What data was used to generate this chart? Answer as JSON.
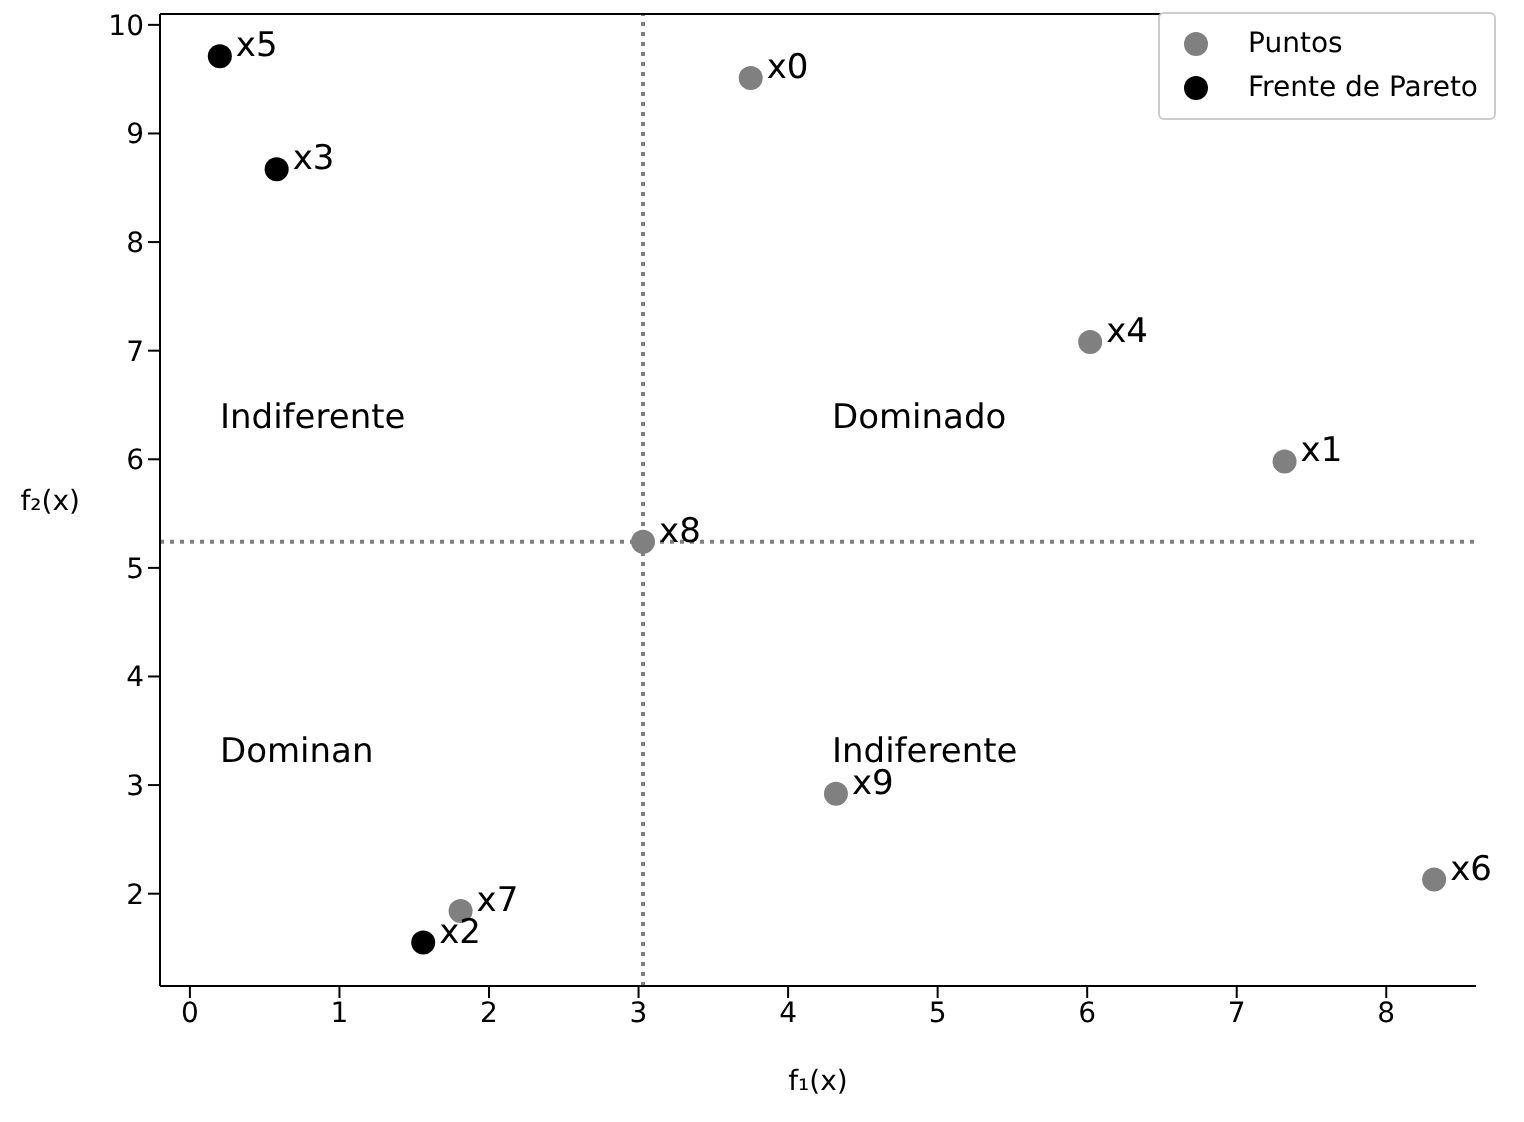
{
  "chart_data": {
    "type": "scatter",
    "xlabel": "f₁(x)",
    "ylabel": "f₂(x)",
    "xlim": [
      -0.2,
      8.6
    ],
    "ylim": [
      1.15,
      10.1
    ],
    "xticks": [
      0,
      1,
      2,
      3,
      4,
      5,
      6,
      7,
      8
    ],
    "yticks": [
      2,
      3,
      4,
      5,
      6,
      7,
      8,
      9,
      10
    ],
    "grid": false,
    "legend": "top right",
    "marker": "circle",
    "series": [
      {
        "name": "Puntos",
        "color": "#808080",
        "x": [
          3.75,
          7.32,
          6.02,
          8.32,
          1.81,
          3.03,
          4.32
        ],
        "values": [
          9.51,
          5.98,
          7.08,
          2.13,
          1.84,
          5.24,
          2.92
        ]
      },
      {
        "name": "Frente de Pareto",
        "color": "#000000",
        "x": [
          1.56,
          0.58,
          0.2
        ],
        "values": [
          1.55,
          8.67,
          9.71
        ]
      }
    ],
    "ref_lines": [
      {
        "axis": "x",
        "value": 3.03,
        "color": "#808080",
        "line_style": "dotted"
      },
      {
        "axis": "y",
        "value": 5.24,
        "color": "#808080",
        "line_style": "dotted"
      }
    ],
    "annotations": [
      {
        "text": "x0",
        "x": 3.75,
        "y": 9.51
      },
      {
        "text": "x1",
        "x": 7.32,
        "y": 5.98
      },
      {
        "text": "x2",
        "x": 1.56,
        "y": 1.55
      },
      {
        "text": "x3",
        "x": 0.58,
        "y": 8.67
      },
      {
        "text": "x4",
        "x": 6.02,
        "y": 7.08
      },
      {
        "text": "x5",
        "x": 0.2,
        "y": 9.71
      },
      {
        "text": "x6",
        "x": 8.32,
        "y": 2.13
      },
      {
        "text": "x7",
        "x": 1.81,
        "y": 1.84
      },
      {
        "text": "x8",
        "x": 3.03,
        "y": 5.24
      },
      {
        "text": "x9",
        "x": 4.32,
        "y": 2.92
      },
      "Indiferente",
      "Dominado",
      "Dominan",
      "Indiferente"
    ]
  }
}
